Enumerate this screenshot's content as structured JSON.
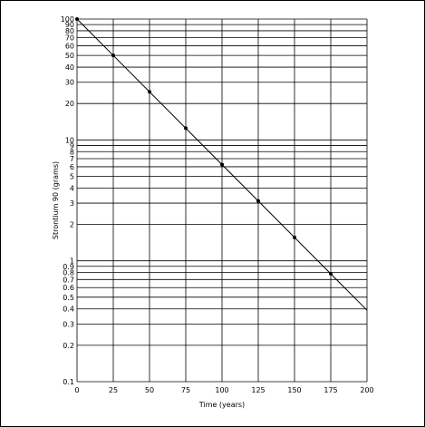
{
  "chart_data": {
    "type": "scatter",
    "xlabel": "Time (years)",
    "ylabel": "Strontium 90 (grams)",
    "x_scale": "linear",
    "y_scale": "log",
    "xlim": [
      0,
      200
    ],
    "ylim": [
      0.1,
      100
    ],
    "grid": true,
    "x_ticks": [
      0,
      25,
      50,
      75,
      100,
      125,
      150,
      175,
      200
    ],
    "x_tick_labels": [
      "0",
      "25",
      "50",
      "75",
      "100",
      "125",
      "150",
      "175",
      "200"
    ],
    "y_ticks": [
      0.1,
      0.2,
      0.3,
      0.4,
      0.5,
      0.6,
      0.7,
      0.8,
      0.9,
      1,
      2,
      3,
      4,
      5,
      6,
      7,
      8,
      9,
      10,
      20,
      30,
      40,
      50,
      60,
      70,
      80,
      90,
      100
    ],
    "y_tick_labels": [
      "0.1",
      "0.2",
      "0.3",
      "0.4",
      "0.5",
      "0.6",
      "0.7",
      "0.8",
      "0.9",
      "1",
      "2",
      "3",
      "4",
      "5",
      "6",
      "7",
      "8",
      "9",
      "10",
      "20",
      "30",
      "40",
      "50",
      "60",
      "70",
      "80",
      "90",
      "100"
    ],
    "series": [
      {
        "x": [
          0,
          25,
          50,
          75,
          100,
          125,
          150,
          175
        ],
        "y": [
          100,
          50,
          25,
          12.5,
          6.25,
          3.13,
          1.56,
          0.78
        ]
      }
    ],
    "trend_line": {
      "x": [
        0,
        200
      ],
      "y": [
        100,
        0.39
      ]
    }
  }
}
